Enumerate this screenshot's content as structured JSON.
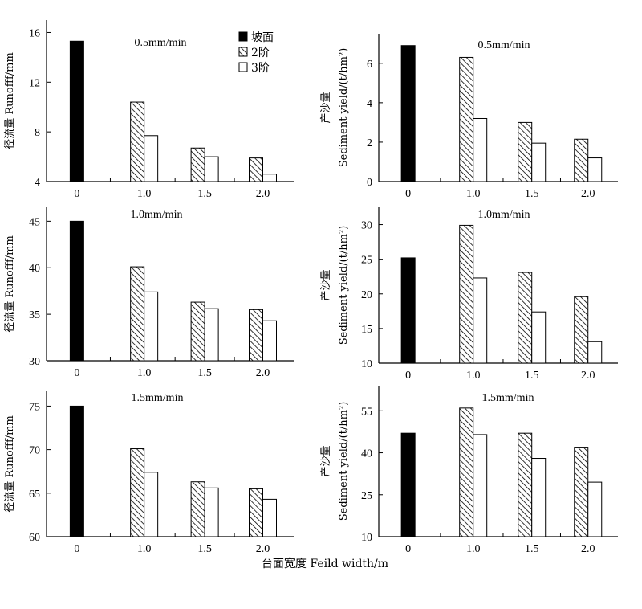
{
  "figure": {
    "xlabel": "台面宽度 Feild width/m"
  },
  "legend": [
    {
      "label": "坡面",
      "style": "solid"
    },
    {
      "label": "2阶",
      "style": "hatch"
    },
    {
      "label": "3阶",
      "style": "open"
    }
  ],
  "chart_data": [
    {
      "type": "bar",
      "title": "0.5mm/min",
      "ylabel": "径流量 Runofff/mm",
      "categories": [
        "0",
        "1.0",
        "1.5",
        "2.0"
      ],
      "ylim": [
        4,
        17
      ],
      "yticks": [
        4,
        8,
        12,
        16
      ],
      "series": [
        {
          "name": "坡面",
          "values": [
            15.3,
            null,
            null,
            null
          ]
        },
        {
          "name": "2阶",
          "values": [
            null,
            10.4,
            6.7,
            5.9
          ]
        },
        {
          "name": "3阶",
          "values": [
            null,
            7.7,
            6.0,
            4.6
          ]
        }
      ],
      "legend": "top-center"
    },
    {
      "type": "bar",
      "title": "0.5mm/min",
      "ylabel": "产沙量 Sediment yield/(t/hm²)",
      "categories": [
        "0",
        "1.0",
        "1.5",
        "2.0"
      ],
      "ylim": [
        0,
        7.5
      ],
      "yticks": [
        0,
        2,
        4,
        6
      ],
      "series": [
        {
          "name": "坡面",
          "values": [
            6.9,
            null,
            null,
            null
          ]
        },
        {
          "name": "2阶",
          "values": [
            null,
            6.3,
            3.0,
            2.15
          ]
        },
        {
          "name": "3阶",
          "values": [
            null,
            3.2,
            1.95,
            1.2
          ]
        }
      ]
    },
    {
      "type": "bar",
      "title": "1.0mm/min",
      "ylabel": "径流量 Runofff/mm",
      "categories": [
        "0",
        "1.0",
        "1.5",
        "2.0"
      ],
      "ylim": [
        30,
        46.5
      ],
      "yticks": [
        30,
        35,
        40,
        45
      ],
      "series": [
        {
          "name": "坡面",
          "values": [
            45.0,
            null,
            null,
            null
          ]
        },
        {
          "name": "2阶",
          "values": [
            null,
            40.1,
            36.3,
            35.5
          ]
        },
        {
          "name": "3阶",
          "values": [
            null,
            37.4,
            35.6,
            34.3
          ]
        }
      ]
    },
    {
      "type": "bar",
      "title": "1.0mm/min",
      "ylabel": "产沙量 Sediment yield/(t/hm²)",
      "categories": [
        "0",
        "1.0",
        "1.5",
        "2.0"
      ],
      "ylim": [
        10,
        32.5
      ],
      "yticks": [
        10,
        15,
        20,
        25,
        30
      ],
      "series": [
        {
          "name": "坡面",
          "values": [
            25.2,
            null,
            null,
            null
          ]
        },
        {
          "name": "2阶",
          "values": [
            null,
            29.9,
            23.1,
            19.6
          ]
        },
        {
          "name": "3阶",
          "values": [
            null,
            22.3,
            17.4,
            13.1
          ]
        }
      ]
    },
    {
      "type": "bar",
      "title": "1.5mm/min",
      "ylabel": "径流量 Runofff/mm",
      "categories": [
        "0",
        "1.0",
        "1.5",
        "2.0"
      ],
      "ylim": [
        60,
        76.7
      ],
      "yticks": [
        60,
        65,
        70,
        75
      ],
      "series": [
        {
          "name": "坡面",
          "values": [
            75.0,
            null,
            null,
            null
          ]
        },
        {
          "name": "2阶",
          "values": [
            null,
            70.1,
            66.3,
            65.5
          ]
        },
        {
          "name": "3阶",
          "values": [
            null,
            67.4,
            65.6,
            64.3
          ]
        }
      ]
    },
    {
      "type": "bar",
      "title": "1.5mm/min",
      "ylabel": "产沙量 Sediment yield/(t/hm²)",
      "categories": [
        "0",
        "1.0",
        "1.5",
        "2.0"
      ],
      "ylim": [
        10,
        64
      ],
      "yticks": [
        10,
        25,
        40,
        55
      ],
      "series": [
        {
          "name": "坡面",
          "values": [
            47.0,
            null,
            null,
            null
          ]
        },
        {
          "name": "2阶",
          "values": [
            null,
            56.0,
            47.0,
            42.0
          ]
        },
        {
          "name": "3阶",
          "values": [
            null,
            46.5,
            38.0,
            29.5
          ]
        }
      ]
    }
  ]
}
